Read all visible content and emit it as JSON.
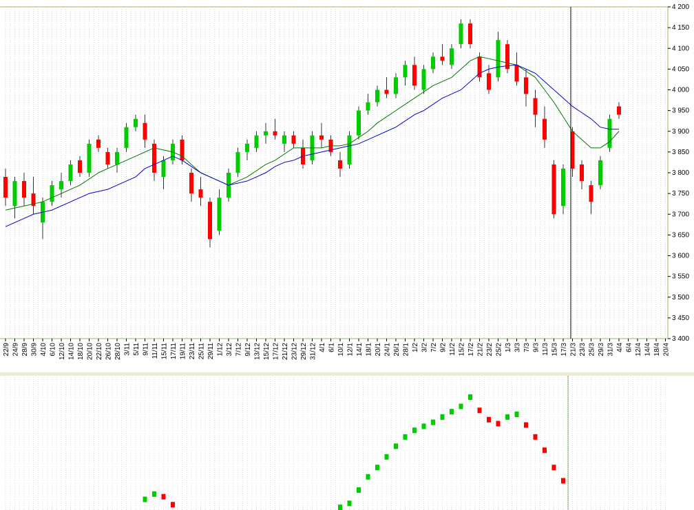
{
  "chart_data": {
    "type": "candlestick",
    "categories": [
      "22/9",
      "24/9",
      "28/9",
      "30/9",
      "4/10",
      "6/10",
      "12/10",
      "14/10",
      "18/10",
      "20/10",
      "22/10",
      "26/10",
      "28/10",
      "3/11",
      "5/11",
      "9/11",
      "11/11",
      "15/11",
      "17/11",
      "19/11",
      "23/11",
      "25/11",
      "29/11",
      "1/12",
      "3/12",
      "7/12",
      "9/12",
      "13/12",
      "15/12",
      "17/12",
      "21/12",
      "23/12",
      "29/12",
      "31/12",
      "4/1",
      "6/1",
      "10/1",
      "12/1",
      "14/1",
      "18/1",
      "20/1",
      "24/1",
      "26/1",
      "28/1",
      "1/2",
      "3/2",
      "7/2",
      "9/2",
      "11/2",
      "15/2",
      "17/2",
      "21/2",
      "23/2",
      "25/2",
      "1/3",
      "3/3",
      "7/3",
      "9/3",
      "11/3",
      "15/3",
      "17/3",
      "21/3",
      "23/3",
      "25/3",
      "29/3",
      "31/3",
      "4/4",
      "6/4",
      "12/4",
      "14/4",
      "18/4",
      "20/4"
    ],
    "open": [
      3790,
      3720,
      3780,
      3750,
      3680,
      3730,
      3760,
      3780,
      3830,
      3800,
      3880,
      3850,
      3820,
      3860,
      3910,
      3920,
      3870,
      3790,
      3830,
      3880,
      3800,
      3760,
      3730,
      3660,
      3740,
      3800,
      3850,
      3860,
      3890,
      3900,
      3870,
      3890,
      3860,
      3830,
      3890,
      3880,
      3830,
      3820,
      3890,
      3950,
      3970,
      4000,
      3990,
      4030,
      4060,
      4000,
      4050,
      4080,
      4060,
      4110,
      4160,
      4080,
      4040,
      4030,
      4110,
      4060,
      4030,
      3980,
      3930,
      3820,
      3720,
      3900,
      3820,
      3770,
      3770,
      3860,
      3960,
      null,
      null,
      null,
      null,
      null
    ],
    "high": [
      3810,
      3790,
      3800,
      3790,
      3740,
      3780,
      3800,
      3830,
      3840,
      3880,
      3890,
      3860,
      3860,
      3920,
      3940,
      3940,
      3880,
      3840,
      3880,
      3890,
      3810,
      3790,
      3740,
      3760,
      3810,
      3860,
      3880,
      3900,
      3920,
      3930,
      3900,
      3900,
      3880,
      3900,
      3920,
      3890,
      3850,
      3900,
      3960,
      3990,
      4010,
      4030,
      4040,
      4070,
      4080,
      4060,
      4090,
      4110,
      4110,
      4170,
      4170,
      4090,
      4060,
      4140,
      4120,
      4090,
      4050,
      4000,
      3960,
      3830,
      3820,
      3910,
      3830,
      3780,
      3840,
      3940,
      3970,
      null,
      null,
      null,
      null,
      null
    ],
    "low": [
      3720,
      3690,
      3720,
      3700,
      3640,
      3720,
      3740,
      3770,
      3790,
      3790,
      3850,
      3810,
      3800,
      3850,
      3900,
      3860,
      3780,
      3760,
      3820,
      3820,
      3730,
      3720,
      3620,
      3650,
      3730,
      3790,
      3830,
      3850,
      3870,
      3880,
      3850,
      3860,
      3810,
      3820,
      3860,
      3840,
      3790,
      3810,
      3880,
      3940,
      3960,
      3980,
      3980,
      4010,
      4000,
      3990,
      4040,
      4060,
      4050,
      4100,
      4100,
      4020,
      3990,
      4020,
      4040,
      4010,
      3960,
      3910,
      3860,
      3690,
      3700,
      3790,
      3760,
      3700,
      3760,
      3850,
      3930,
      null,
      null,
      null,
      null,
      null
    ],
    "close": [
      3740,
      3780,
      3740,
      3720,
      3730,
      3770,
      3780,
      3820,
      3800,
      3870,
      3860,
      3820,
      3850,
      3910,
      3930,
      3880,
      3800,
      3830,
      3870,
      3830,
      3750,
      3740,
      3640,
      3740,
      3800,
      3850,
      3870,
      3890,
      3900,
      3890,
      3890,
      3870,
      3820,
      3890,
      3880,
      3850,
      3810,
      3890,
      3950,
      3970,
      4000,
      3990,
      4030,
      4060,
      4010,
      4050,
      4080,
      4070,
      4100,
      4160,
      4110,
      4030,
      4000,
      4120,
      4050,
      4020,
      3990,
      3940,
      3880,
      3700,
      3810,
      3810,
      3780,
      3730,
      3830,
      3930,
      3940,
      null,
      null,
      null,
      null,
      null
    ],
    "up_color": "#00cc00",
    "down_color": "#ff0000",
    "lines": [
      {
        "color": "#007700",
        "values": [
          3710,
          3715,
          3720,
          3725,
          3730,
          3740,
          3750,
          3760,
          3770,
          3785,
          3800,
          3810,
          3820,
          3830,
          3840,
          3850,
          3860,
          3855,
          3850,
          3840,
          3820,
          3800,
          3790,
          3780,
          3770,
          3780,
          3790,
          3805,
          3820,
          3830,
          3845,
          3860,
          3860,
          3860,
          3860,
          3865,
          3865,
          3870,
          3885,
          3900,
          3920,
          3935,
          3950,
          3965,
          3980,
          3995,
          4010,
          4020,
          4030,
          4050,
          4070,
          4080,
          4075,
          4070,
          4065,
          4060,
          4045,
          4030,
          4000,
          3970,
          3935,
          3900,
          3880,
          3860,
          3860,
          3875,
          3900,
          null,
          null,
          null,
          null,
          null
        ]
      },
      {
        "color": "#0000cc",
        "values": [
          3670,
          3680,
          3690,
          3700,
          3705,
          3710,
          3720,
          3730,
          3740,
          3750,
          3755,
          3760,
          3770,
          3780,
          3790,
          3810,
          3820,
          3830,
          3840,
          3830,
          3815,
          3800,
          3790,
          3780,
          3770,
          3775,
          3780,
          3790,
          3800,
          3815,
          3825,
          3830,
          3840,
          3845,
          3850,
          3855,
          3860,
          3865,
          3870,
          3880,
          3890,
          3900,
          3910,
          3925,
          3940,
          3950,
          3965,
          3980,
          3990,
          4000,
          4020,
          4040,
          4050,
          4055,
          4058,
          4060,
          4050,
          4040,
          4020,
          4000,
          3980,
          3960,
          3945,
          3930,
          3910,
          3905,
          3905,
          null,
          null,
          null,
          null,
          null
        ]
      }
    ],
    "ylim": [
      3400,
      4200
    ],
    "yticks": [
      {
        "value": 3400,
        "label": "3 400"
      },
      {
        "value": 3450,
        "label": "3 450"
      },
      {
        "value": 3500,
        "label": "3 500"
      },
      {
        "value": 3550,
        "label": "3 550"
      },
      {
        "value": 3600,
        "label": "3 600"
      },
      {
        "value": 3650,
        "label": "3 650"
      },
      {
        "value": 3700,
        "label": "3 700"
      },
      {
        "value": 3750,
        "label": "3 750"
      },
      {
        "value": 3800,
        "label": "3 800"
      },
      {
        "value": 3850,
        "label": "3 850"
      },
      {
        "value": 3900,
        "label": "3 900"
      },
      {
        "value": 3950,
        "label": "3 950"
      },
      {
        "value": 4000,
        "label": "4 000"
      },
      {
        "value": 4050,
        "label": "4 050"
      },
      {
        "value": 4100,
        "label": "4 100"
      },
      {
        "value": 4150,
        "label": "4 150"
      },
      {
        "value": 4200,
        "label": "4 200"
      }
    ],
    "indicator": {
      "ylim": [
        0,
        100
      ],
      "values": [
        null,
        null,
        null,
        null,
        null,
        null,
        null,
        null,
        null,
        null,
        null,
        null,
        null,
        null,
        null,
        8,
        12,
        10,
        4,
        null,
        null,
        null,
        null,
        null,
        null,
        null,
        null,
        null,
        null,
        null,
        null,
        null,
        null,
        null,
        null,
        null,
        2,
        5,
        15,
        25,
        32,
        40,
        48,
        55,
        60,
        63,
        66,
        70,
        74,
        78,
        85,
        75,
        68,
        65,
        70,
        72,
        64,
        55,
        45,
        32,
        22,
        null,
        null,
        null,
        null,
        null,
        null,
        null,
        null,
        null,
        null,
        null
      ]
    }
  }
}
